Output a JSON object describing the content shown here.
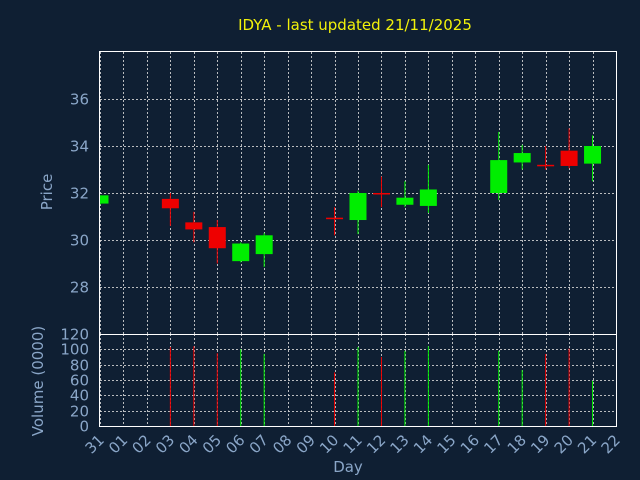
{
  "chart_data": {
    "type": "candlestick",
    "title": "IDYA - last updated 21/11/2025",
    "xlabel": "Day",
    "ylabel_price": "Price",
    "ylabel_volume": "Volume (0000)",
    "x_ticks": [
      "31",
      "01",
      "02",
      "03",
      "04",
      "05",
      "06",
      "07",
      "08",
      "09",
      "10",
      "11",
      "12",
      "13",
      "14",
      "15",
      "16",
      "17",
      "18",
      "19",
      "20",
      "21",
      "22"
    ],
    "price_ylim": [
      26.0,
      38.0
    ],
    "price_ticks": [
      28,
      30,
      32,
      34,
      36
    ],
    "volume_ylim": [
      0,
      120
    ],
    "volume_ticks": [
      0,
      20,
      40,
      60,
      80,
      100,
      120
    ],
    "grid": true,
    "colors": {
      "up": "#00ee00",
      "down": "#ee0000",
      "background": "#0f1f33",
      "title": "#f2f20a",
      "text": "#8aa6c8"
    },
    "candles": [
      {
        "day": "31",
        "open": 31.55,
        "high": 31.9,
        "low": 31.5,
        "close": 31.9,
        "volume": null
      },
      {
        "day": "03",
        "open": 31.75,
        "high": 32.0,
        "low": 30.6,
        "close": 31.35,
        "volume": 103
      },
      {
        "day": "04",
        "open": 30.75,
        "high": 31.2,
        "low": 29.9,
        "close": 30.45,
        "volume": 104
      },
      {
        "day": "05",
        "open": 30.55,
        "high": 30.85,
        "low": 29.0,
        "close": 29.65,
        "volume": 95
      },
      {
        "day": "06",
        "open": 29.1,
        "high": 29.9,
        "low": 29.05,
        "close": 29.85,
        "volume": 100
      },
      {
        "day": "07",
        "open": 29.4,
        "high": 30.3,
        "low": 28.85,
        "close": 30.2,
        "volume": 94
      },
      {
        "day": "10",
        "open": 30.95,
        "high": 31.4,
        "low": 30.2,
        "close": 30.9,
        "volume": 70
      },
      {
        "day": "11",
        "open": 30.85,
        "high": 32.1,
        "low": 30.25,
        "close": 32.0,
        "volume": 103
      },
      {
        "day": "12",
        "open": 32.0,
        "high": 32.7,
        "low": 31.4,
        "close": 31.95,
        "volume": 90
      },
      {
        "day": "13",
        "open": 31.5,
        "high": 32.5,
        "low": 31.4,
        "close": 31.8,
        "volume": 98
      },
      {
        "day": "14",
        "open": 31.45,
        "high": 33.2,
        "low": 31.15,
        "close": 32.15,
        "volume": 104
      },
      {
        "day": "17",
        "open": 32.0,
        "high": 34.6,
        "low": 31.7,
        "close": 33.4,
        "volume": 98
      },
      {
        "day": "18",
        "open": 33.3,
        "high": 34.05,
        "low": 33.0,
        "close": 33.7,
        "volume": 73
      },
      {
        "day": "19",
        "open": 33.2,
        "high": 34.0,
        "low": 33.0,
        "close": 33.15,
        "volume": 94
      },
      {
        "day": "20",
        "open": 33.8,
        "high": 34.75,
        "low": 33.05,
        "close": 33.15,
        "volume": 101
      },
      {
        "day": "21",
        "open": 33.25,
        "high": 34.45,
        "low": 32.5,
        "close": 34.0,
        "volume": 59
      }
    ]
  }
}
